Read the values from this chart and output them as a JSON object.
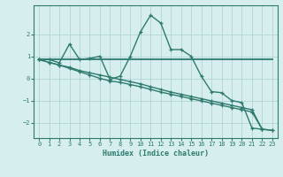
{
  "xlabel": "Humidex (Indice chaleur)",
  "background_color": "#d6eeee",
  "grid_color": "#b0d4d4",
  "line_color": "#2e7b6e",
  "x_ticks": [
    0,
    1,
    2,
    3,
    4,
    5,
    6,
    7,
    8,
    9,
    10,
    11,
    12,
    13,
    14,
    15,
    16,
    17,
    18,
    19,
    20,
    21,
    22,
    23
  ],
  "xlim": [
    -0.5,
    23.5
  ],
  "ylim": [
    -2.7,
    3.3
  ],
  "yticks": [
    -2,
    -1,
    0,
    1,
    2
  ],
  "series": [
    {
      "x": [
        0,
        1,
        2,
        3,
        4,
        5,
        6,
        7,
        8,
        9,
        10,
        11,
        12,
        13,
        14,
        15,
        16,
        17,
        18,
        19,
        20,
        21,
        22,
        23
      ],
      "y": [
        0.85,
        0.85,
        0.85,
        0.85,
        0.85,
        0.85,
        0.85,
        0.85,
        0.85,
        0.85,
        0.85,
        0.85,
        0.85,
        0.85,
        0.85,
        0.85,
        0.85,
        0.85,
        0.85,
        0.85,
        0.85,
        0.85,
        0.85,
        0.85
      ],
      "marker": null,
      "linewidth": 1.3,
      "linestyle": "-"
    },
    {
      "x": [
        0,
        1,
        2,
        3,
        4,
        5,
        6,
        7,
        8,
        9,
        10,
        11,
        12,
        13,
        14,
        15,
        16,
        17,
        18,
        19,
        20,
        21,
        22
      ],
      "y": [
        0.85,
        0.85,
        0.7,
        1.55,
        0.85,
        0.9,
        1.0,
        -0.05,
        0.1,
        1.0,
        2.1,
        2.85,
        2.5,
        1.3,
        1.3,
        1.0,
        0.1,
        -0.6,
        -0.65,
        -1.0,
        -1.1,
        -2.25,
        -2.3
      ],
      "marker": "+",
      "linewidth": 1.0,
      "linestyle": "-"
    },
    {
      "x": [
        0,
        1,
        2,
        3,
        4,
        5,
        6,
        7,
        8,
        9,
        10,
        11,
        12,
        13,
        14,
        15,
        16,
        17,
        18,
        19,
        20,
        21,
        22,
        23
      ],
      "y": [
        0.85,
        0.72,
        0.6,
        0.5,
        0.35,
        0.25,
        0.15,
        0.05,
        -0.05,
        -0.15,
        -0.25,
        -0.38,
        -0.5,
        -0.62,
        -0.72,
        -0.82,
        -0.92,
        -1.02,
        -1.12,
        -1.22,
        -1.32,
        -1.42,
        -2.3,
        -2.35
      ],
      "marker": "+",
      "linewidth": 1.0,
      "linestyle": "-"
    },
    {
      "x": [
        0,
        1,
        2,
        3,
        4,
        5,
        6,
        7,
        8,
        9,
        10,
        11,
        12,
        13,
        14,
        15,
        16,
        17,
        18,
        19,
        20,
        21,
        22,
        23
      ],
      "y": [
        0.85,
        0.72,
        0.6,
        0.45,
        0.3,
        0.15,
        0.0,
        -0.12,
        -0.18,
        -0.28,
        -0.38,
        -0.5,
        -0.62,
        -0.72,
        -0.82,
        -0.92,
        -1.02,
        -1.12,
        -1.22,
        -1.32,
        -1.42,
        -1.52,
        -2.3,
        -2.35
      ],
      "marker": "+",
      "linewidth": 1.0,
      "linestyle": "-"
    }
  ]
}
